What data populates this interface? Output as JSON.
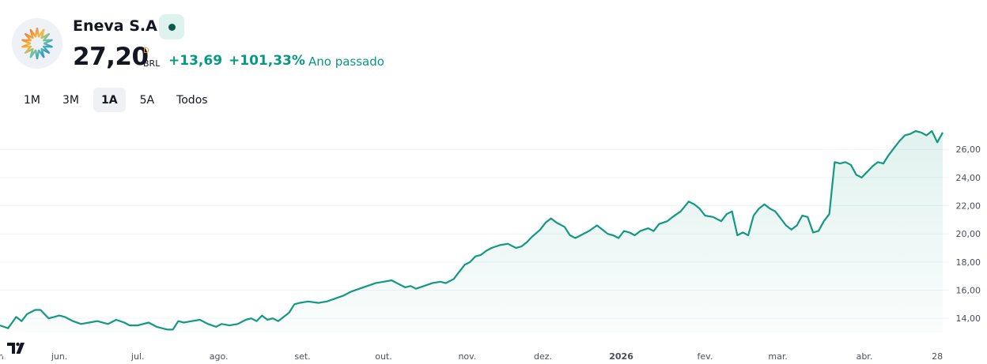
{
  "header": {
    "company_name": "Eneva S.A.",
    "price": "27,20",
    "price_flag": "D",
    "currency": "BRL",
    "change_abs": "+13,69",
    "change_pct": "+101,33%",
    "change_period": "Ano passado",
    "market_status_icon": "market-status-dot-icon",
    "logo_icon": "eneva-sunburst-logo"
  },
  "range_tabs": [
    {
      "label": "1M",
      "active": false
    },
    {
      "label": "3M",
      "active": false
    },
    {
      "label": "1A",
      "active": true
    },
    {
      "label": "5A",
      "active": false
    },
    {
      "label": "Todos",
      "active": false
    }
  ],
  "colors": {
    "accent": "#089981",
    "line": "#139981",
    "grid": "#f0f3fa",
    "text": "#131722",
    "axis_text": "#4a4f5c",
    "flag": "#f5a623"
  },
  "branding": {
    "watermark_icon": "tradingview-logo-icon"
  },
  "chart_data": {
    "type": "area",
    "title": "",
    "xlabel": "",
    "ylabel": "",
    "y_axis_position": "right",
    "grid": true,
    "ylim": [
      13.0,
      28.2
    ],
    "y_ticks": [
      14,
      16,
      18,
      20,
      22,
      24,
      26
    ],
    "y_tick_labels": [
      "14,00",
      "16,00",
      "18,00",
      "20,00",
      "22,00",
      "24,00",
      "26,00"
    ],
    "x_ticks": [
      {
        "label": "ma.",
        "x": 0
      },
      {
        "label": "jun.",
        "x": 22
      },
      {
        "label": "jul.",
        "x": 51
      },
      {
        "label": "ago.",
        "x": 81
      },
      {
        "label": "set.",
        "x": 112
      },
      {
        "label": "out.",
        "x": 142
      },
      {
        "label": "nov.",
        "x": 173
      },
      {
        "label": "dez.",
        "x": 201
      },
      {
        "label": "2026",
        "x": 230
      },
      {
        "label": "fev.",
        "x": 261
      },
      {
        "label": "mar.",
        "x": 288
      },
      {
        "label": "abr.",
        "x": 320
      },
      {
        "label": "28",
        "x": 347
      }
    ],
    "series": [
      {
        "name": "",
        "points": [
          [
            0,
            13.5
          ],
          [
            3,
            13.3
          ],
          [
            6,
            14.1
          ],
          [
            8,
            13.8
          ],
          [
            10,
            14.3
          ],
          [
            13,
            14.6
          ],
          [
            15,
            14.6
          ],
          [
            18,
            14.0
          ],
          [
            20,
            14.1
          ],
          [
            22,
            14.2
          ],
          [
            24,
            14.1
          ],
          [
            27,
            13.8
          ],
          [
            30,
            13.6
          ],
          [
            33,
            13.7
          ],
          [
            36,
            13.8
          ],
          [
            40,
            13.6
          ],
          [
            43,
            13.9
          ],
          [
            46,
            13.7
          ],
          [
            48,
            13.5
          ],
          [
            51,
            13.5
          ],
          [
            55,
            13.7
          ],
          [
            58,
            13.4
          ],
          [
            62,
            13.2
          ],
          [
            64,
            13.2
          ],
          [
            66,
            13.8
          ],
          [
            68,
            13.7
          ],
          [
            71,
            13.8
          ],
          [
            74,
            13.9
          ],
          [
            77,
            13.6
          ],
          [
            80,
            13.4
          ],
          [
            82,
            13.6
          ],
          [
            85,
            13.5
          ],
          [
            88,
            13.6
          ],
          [
            91,
            13.9
          ],
          [
            93,
            14.0
          ],
          [
            95,
            13.8
          ],
          [
            97,
            14.2
          ],
          [
            99,
            13.9
          ],
          [
            101,
            14.0
          ],
          [
            103,
            13.8
          ],
          [
            105,
            14.1
          ],
          [
            107,
            14.4
          ],
          [
            109,
            15.0
          ],
          [
            111,
            15.1
          ],
          [
            114,
            15.2
          ],
          [
            118,
            15.1
          ],
          [
            121,
            15.2
          ],
          [
            124,
            15.4
          ],
          [
            127,
            15.6
          ],
          [
            130,
            15.9
          ],
          [
            133,
            16.1
          ],
          [
            136,
            16.3
          ],
          [
            139,
            16.5
          ],
          [
            142,
            16.6
          ],
          [
            145,
            16.7
          ],
          [
            147,
            16.5
          ],
          [
            150,
            16.2
          ],
          [
            152,
            16.3
          ],
          [
            154,
            16.1
          ],
          [
            157,
            16.3
          ],
          [
            160,
            16.5
          ],
          [
            163,
            16.6
          ],
          [
            165,
            16.5
          ],
          [
            168,
            16.8
          ],
          [
            170,
            17.3
          ],
          [
            172,
            17.8
          ],
          [
            174,
            18.0
          ],
          [
            176,
            18.4
          ],
          [
            178,
            18.5
          ],
          [
            180,
            18.8
          ],
          [
            182,
            19.0
          ],
          [
            185,
            19.2
          ],
          [
            188,
            19.3
          ],
          [
            191,
            19.0
          ],
          [
            193,
            19.1
          ],
          [
            195,
            19.4
          ],
          [
            197,
            19.8
          ],
          [
            200,
            20.3
          ],
          [
            202,
            20.8
          ],
          [
            204,
            21.1
          ],
          [
            206,
            20.8
          ],
          [
            209,
            20.5
          ],
          [
            211,
            19.9
          ],
          [
            213,
            19.7
          ],
          [
            215,
            19.9
          ],
          [
            218,
            20.2
          ],
          [
            221,
            20.6
          ],
          [
            223,
            20.3
          ],
          [
            225,
            20.0
          ],
          [
            227,
            19.9
          ],
          [
            229,
            19.7
          ],
          [
            231,
            20.2
          ],
          [
            233,
            20.1
          ],
          [
            235,
            19.9
          ],
          [
            237,
            20.2
          ],
          [
            240,
            20.4
          ],
          [
            242,
            20.2
          ],
          [
            244,
            20.7
          ],
          [
            247,
            20.9
          ],
          [
            249,
            21.2
          ],
          [
            252,
            21.6
          ],
          [
            255,
            22.3
          ],
          [
            257,
            22.1
          ],
          [
            259,
            21.8
          ],
          [
            261,
            21.3
          ],
          [
            264,
            21.2
          ],
          [
            267,
            20.9
          ],
          [
            269,
            21.4
          ],
          [
            271,
            21.6
          ],
          [
            273,
            19.9
          ],
          [
            275,
            20.1
          ],
          [
            277,
            19.9
          ],
          [
            279,
            21.3
          ],
          [
            281,
            21.8
          ],
          [
            283,
            22.1
          ],
          [
            285,
            21.8
          ],
          [
            287,
            21.6
          ],
          [
            289,
            21.1
          ],
          [
            291,
            20.6
          ],
          [
            293,
            20.3
          ],
          [
            295,
            20.6
          ],
          [
            297,
            21.3
          ],
          [
            299,
            21.2
          ],
          [
            301,
            20.1
          ],
          [
            303,
            20.2
          ],
          [
            305,
            20.9
          ],
          [
            307,
            21.4
          ],
          [
            309,
            25.1
          ],
          [
            311,
            25.0
          ],
          [
            313,
            25.1
          ],
          [
            315,
            24.9
          ],
          [
            317,
            24.2
          ],
          [
            319,
            24.0
          ],
          [
            321,
            24.4
          ],
          [
            323,
            24.8
          ],
          [
            325,
            25.1
          ],
          [
            327,
            25.0
          ],
          [
            329,
            25.6
          ],
          [
            331,
            26.1
          ],
          [
            333,
            26.6
          ],
          [
            335,
            27.0
          ],
          [
            337,
            27.1
          ],
          [
            339,
            27.3
          ],
          [
            341,
            27.2
          ],
          [
            343,
            27.0
          ],
          [
            345,
            27.3
          ],
          [
            347,
            26.5
          ],
          [
            349,
            27.2
          ]
        ]
      }
    ]
  }
}
